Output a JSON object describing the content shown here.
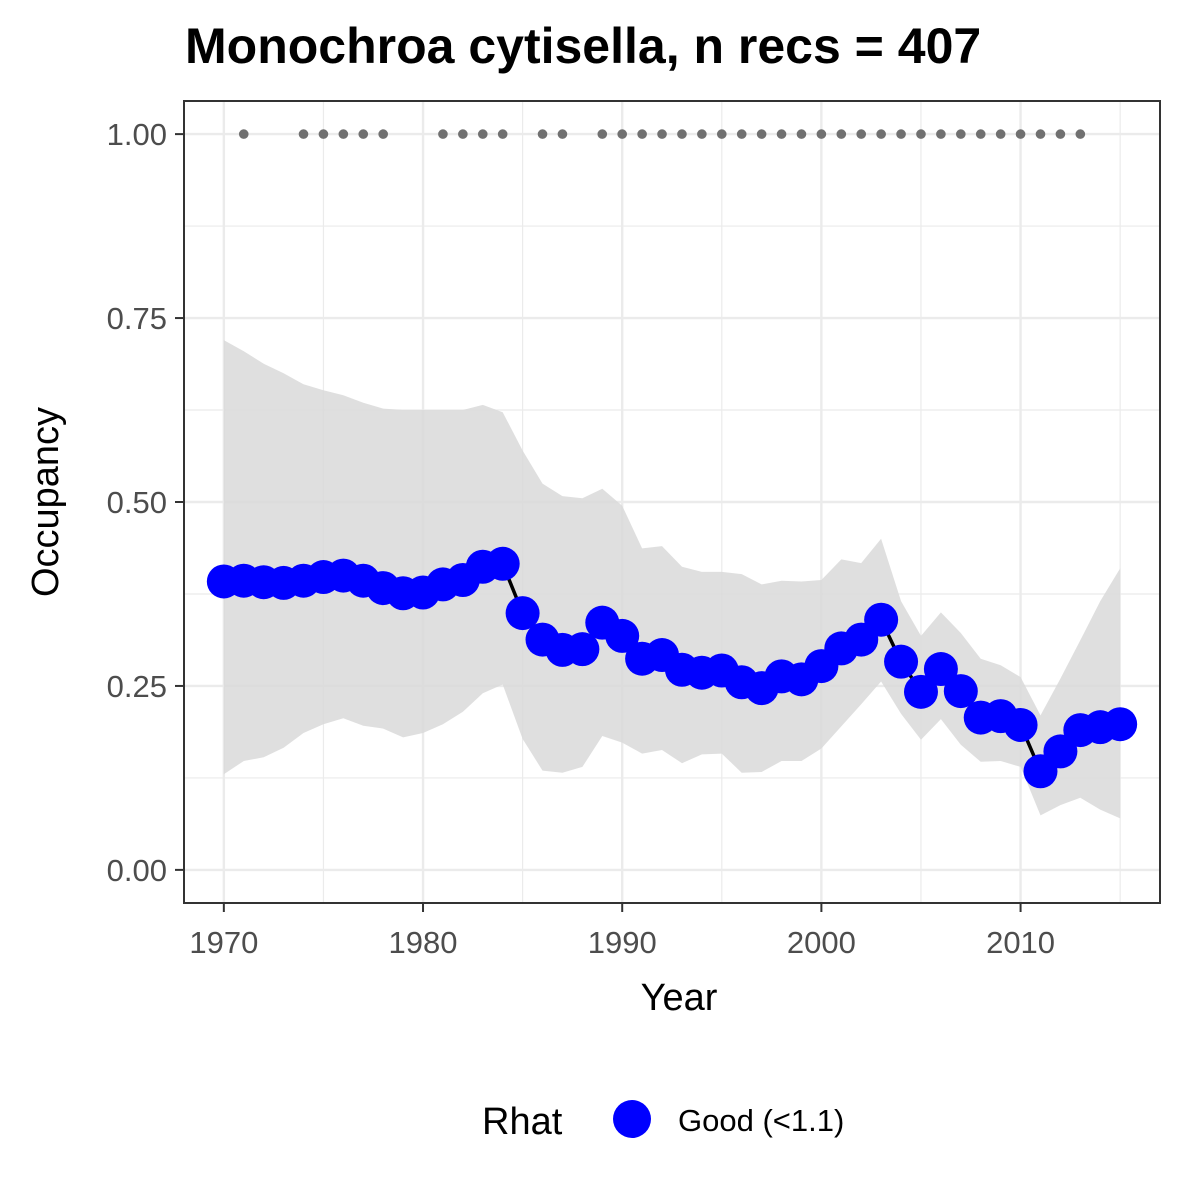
{
  "chart_data": {
    "type": "line",
    "title": "Monochroa cytisella, n recs = 407",
    "xlabel": "Year",
    "ylabel": "Occupancy",
    "xlim": [
      1968,
      2017
    ],
    "ylim": [
      -0.045,
      1.045
    ],
    "x_ticks": [
      1970,
      1980,
      1990,
      2000,
      2010
    ],
    "x_tick_labels": [
      "1970",
      "1980",
      "1990",
      "2000",
      "2010"
    ],
    "y_ticks": [
      0,
      0.25,
      0.5,
      0.75,
      1.0
    ],
    "y_tick_labels": [
      "0.00",
      "0.25",
      "0.50",
      "0.75",
      "1.00"
    ],
    "grid": true,
    "legend": {
      "title": "Rhat",
      "position": "bottom",
      "entries": [
        {
          "label": "Good (<1.1)",
          "color": "#0000ff"
        }
      ]
    },
    "colors": {
      "points": "#0000ff",
      "line": "#000000",
      "ribbon": "#d9d9d9",
      "records": "#707070",
      "grid": "#ebebeb",
      "panel_border": "#333333"
    },
    "series": [
      {
        "name": "Occupancy",
        "x": [
          1970,
          1971,
          1972,
          1973,
          1974,
          1975,
          1976,
          1977,
          1978,
          1979,
          1980,
          1981,
          1982,
          1983,
          1984,
          1985,
          1986,
          1987,
          1988,
          1989,
          1990,
          1991,
          1992,
          1993,
          1994,
          1995,
          1996,
          1997,
          1998,
          1999,
          2000,
          2001,
          2002,
          2003,
          2004,
          2005,
          2006,
          2007,
          2008,
          2009,
          2010,
          2011,
          2012,
          2013,
          2014,
          2015
        ],
        "y": [
          0.392,
          0.393,
          0.391,
          0.39,
          0.393,
          0.398,
          0.4,
          0.393,
          0.383,
          0.376,
          0.377,
          0.388,
          0.394,
          0.412,
          0.416,
          0.349,
          0.313,
          0.299,
          0.3,
          0.336,
          0.318,
          0.287,
          0.292,
          0.272,
          0.268,
          0.271,
          0.255,
          0.247,
          0.263,
          0.259,
          0.277,
          0.301,
          0.313,
          0.34,
          0.283,
          0.242,
          0.273,
          0.243,
          0.207,
          0.209,
          0.197,
          0.134,
          0.161,
          0.19,
          0.194,
          0.198
        ]
      }
    ],
    "ribbon": {
      "x": [
        1970,
        1971,
        1972,
        1973,
        1974,
        1975,
        1976,
        1977,
        1978,
        1979,
        1980,
        1981,
        1982,
        1983,
        1984,
        1985,
        1986,
        1987,
        1988,
        1989,
        1990,
        1991,
        1992,
        1993,
        1994,
        1995,
        1996,
        1997,
        1998,
        1999,
        2000,
        2001,
        2002,
        2003,
        2004,
        2005,
        2006,
        2007,
        2008,
        2009,
        2010,
        2011,
        2012,
        2013,
        2014,
        2015
      ],
      "lower": [
        0.13,
        0.148,
        0.153,
        0.166,
        0.186,
        0.198,
        0.206,
        0.196,
        0.192,
        0.18,
        0.186,
        0.198,
        0.215,
        0.24,
        0.252,
        0.178,
        0.135,
        0.132,
        0.14,
        0.182,
        0.173,
        0.158,
        0.163,
        0.145,
        0.157,
        0.158,
        0.132,
        0.133,
        0.148,
        0.148,
        0.165,
        0.195,
        0.225,
        0.256,
        0.212,
        0.177,
        0.205,
        0.17,
        0.147,
        0.148,
        0.14,
        0.074,
        0.088,
        0.098,
        0.082,
        0.07
      ],
      "upper": [
        0.72,
        0.705,
        0.688,
        0.675,
        0.66,
        0.652,
        0.645,
        0.635,
        0.627,
        0.625,
        0.625,
        0.625,
        0.625,
        0.632,
        0.622,
        0.57,
        0.525,
        0.508,
        0.505,
        0.518,
        0.495,
        0.437,
        0.44,
        0.412,
        0.405,
        0.405,
        0.402,
        0.388,
        0.393,
        0.392,
        0.394,
        0.422,
        0.417,
        0.45,
        0.365,
        0.318,
        0.35,
        0.322,
        0.287,
        0.278,
        0.262,
        0.21,
        0.26,
        0.312,
        0.365,
        0.41
      ]
    },
    "records": {
      "x": [
        1971,
        1974,
        1975,
        1976,
        1977,
        1978,
        1981,
        1982,
        1983,
        1984,
        1986,
        1987,
        1989,
        1990,
        1991,
        1992,
        1993,
        1994,
        1995,
        1996,
        1997,
        1998,
        1999,
        2000,
        2001,
        2002,
        2003,
        2004,
        2005,
        2006,
        2007,
        2008,
        2009,
        2010,
        2011,
        2012,
        2013
      ],
      "y": 1.0
    }
  }
}
